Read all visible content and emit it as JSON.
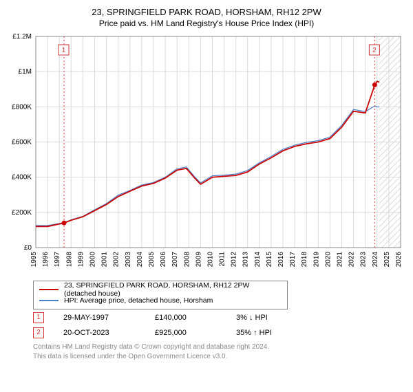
{
  "title": "23, SPRINGFIELD PARK ROAD, HORSHAM, RH12 2PW",
  "subtitle": "Price paid vs. HM Land Registry's House Price Index (HPI)",
  "chart": {
    "type": "line",
    "background_color": "#ffffff",
    "plot_border_color": "#888888",
    "xlim": [
      1995,
      2026
    ],
    "data_x_end": 2024.2,
    "hatch_start": 2024.2,
    "ylim": [
      0,
      1200000
    ],
    "yticks": [
      0,
      200000,
      400000,
      600000,
      800000,
      1000000,
      1200000
    ],
    "ytick_labels": [
      "£0",
      "£200K",
      "£400K",
      "£600K",
      "£800K",
      "£1M",
      "£1.2M"
    ],
    "xticks": [
      1995,
      1996,
      1997,
      1998,
      1999,
      2000,
      2001,
      2002,
      2003,
      2004,
      2005,
      2006,
      2007,
      2008,
      2009,
      2010,
      2011,
      2012,
      2013,
      2014,
      2015,
      2016,
      2017,
      2018,
      2019,
      2020,
      2021,
      2022,
      2023,
      2024,
      2025,
      2026
    ],
    "grid_color": "#d9d9d9",
    "axis_font_size": 10,
    "series": [
      {
        "name": "23, SPRINGFIELD PARK ROAD, HORSHAM, RH12 2PW (detached house)",
        "color": "#cc0000",
        "line_width": 1.8,
        "x": [
          1995.0,
          1996.0,
          1997.4,
          1998.0,
          1999.0,
          2000.0,
          2001.0,
          2002.0,
          2003.0,
          2004.0,
          2005.0,
          2006.0,
          2007.0,
          2007.8,
          2008.5,
          2009.0,
          2010.0,
          2011.0,
          2012.0,
          2013.0,
          2014.0,
          2015.0,
          2016.0,
          2017.0,
          2018.0,
          2019.0,
          2020.0,
          2021.0,
          2022.0,
          2023.0,
          2023.8,
          2024.0,
          2024.2
        ],
        "y": [
          120000,
          120000,
          140000,
          155000,
          175000,
          210000,
          245000,
          290000,
          320000,
          350000,
          365000,
          395000,
          440000,
          450000,
          395000,
          360000,
          400000,
          405000,
          410000,
          430000,
          475000,
          510000,
          550000,
          575000,
          590000,
          600000,
          620000,
          685000,
          775000,
          765000,
          925000,
          945000,
          940000
        ]
      },
      {
        "name": "HPI: Average price, detached house, Horsham",
        "color": "#4a7fc9",
        "line_width": 1.2,
        "x": [
          1995.0,
          1996.0,
          1997.4,
          1998.0,
          1999.0,
          2000.0,
          2001.0,
          2002.0,
          2003.0,
          2004.0,
          2005.0,
          2006.0,
          2007.0,
          2007.8,
          2008.5,
          2009.0,
          2010.0,
          2011.0,
          2012.0,
          2013.0,
          2014.0,
          2015.0,
          2016.0,
          2017.0,
          2018.0,
          2019.0,
          2020.0,
          2021.0,
          2022.0,
          2023.0,
          2023.8,
          2024.0,
          2024.2
        ],
        "y": [
          125000,
          125000,
          142000,
          158000,
          178000,
          215000,
          250000,
          298000,
          325000,
          356000,
          370000,
          400000,
          448000,
          458000,
          402000,
          368000,
          408000,
          412000,
          418000,
          438000,
          482000,
          518000,
          558000,
          582000,
          598000,
          608000,
          628000,
          695000,
          785000,
          773000,
          805000,
          800000,
          800000
        ]
      }
    ],
    "txn_markers": [
      {
        "label": "1",
        "x": 1997.4,
        "y": 140000,
        "point_color": "#cc0000",
        "line_color": "#d33"
      },
      {
        "label": "2",
        "x": 2023.8,
        "y": 925000,
        "point_color": "#cc0000",
        "line_color": "#d33"
      }
    ],
    "marker_box_border": "#cc3333",
    "marker_box_fill": "#ffffff",
    "marker_text_color": "#cc3333"
  },
  "legend": {
    "series1_label": "23, SPRINGFIELD PARK ROAD, HORSHAM, RH12 2PW (detached house)",
    "series1_color": "#cc0000",
    "series2_label": "HPI: Average price, detached house, Horsham",
    "series2_color": "#4a7fc9"
  },
  "transactions": [
    {
      "marker": "1",
      "date": "29-MAY-1997",
      "price": "£140,000",
      "pct": "3% ↓ HPI"
    },
    {
      "marker": "2",
      "date": "20-OCT-2023",
      "price": "£925,000",
      "pct": "35% ↑ HPI"
    }
  ],
  "footer_line1": "Contains HM Land Registry data © Crown copyright and database right 2024.",
  "footer_line2": "This data is licensed under the Open Government Licence v3.0."
}
